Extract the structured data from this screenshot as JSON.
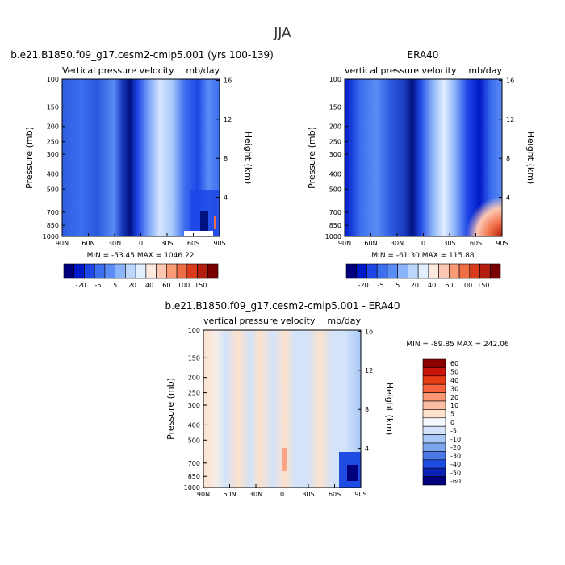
{
  "figure": {
    "title": "JJA"
  },
  "panels": [
    {
      "id": "model",
      "title": "b.e21.B1850.f09_g17.cesm2-cmip5.001 (yrs 100-139)",
      "left_label": "Vertical pressure velocity",
      "right_label": "mb/day",
      "ylabel": "Pressure (mb)",
      "y2label": "Height (km)",
      "stats": "MIN = -53.45   MAX = 1046.22"
    },
    {
      "id": "obs",
      "title": "ERA40",
      "left_label": "vertical pressure velocity",
      "right_label": "mb/day",
      "ylabel": "Pressure (mb)",
      "y2label": "Height (km)",
      "stats": "MIN = -61.30   MAX = 115.88"
    },
    {
      "id": "diff",
      "title": "b.e21.B1850.f09_g17.cesm2-cmip5.001 - ERA40",
      "left_label": "vertical pressure velocity",
      "right_label": "mb/day",
      "ylabel": "Pressure (mb)",
      "y2label": "Height (km)",
      "stats": "MIN = -89.85   MAX = 242.06"
    }
  ],
  "chart_data": [
    {
      "type": "heatmap",
      "panel": "model",
      "x_ticks": [
        "90N",
        "60N",
        "30N",
        "0",
        "30S",
        "60S",
        "90S"
      ],
      "x_values": [
        90,
        60,
        30,
        0,
        -30,
        -60,
        -90
      ],
      "y_ticks": [
        "100",
        "150",
        "200",
        "250",
        "300",
        "400",
        "500",
        "700",
        "850",
        "1000"
      ],
      "y_values": [
        100,
        150,
        200,
        250,
        300,
        400,
        500,
        700,
        850,
        1000
      ],
      "y_scale": "log",
      "y2_ticks": [
        "16",
        "12",
        "8",
        "4"
      ],
      "y2_values": [
        16,
        12,
        8,
        4
      ],
      "min": -53.45,
      "max": 1046.22,
      "colorbar": {
        "labels": [
          "-20",
          "-5",
          "5",
          "20",
          "40",
          "60",
          "100",
          "150"
        ],
        "colors": [
          "#00007f",
          "#0019c8",
          "#1e46e6",
          "#3c6ef0",
          "#5a8cf5",
          "#8cb4fa",
          "#bcd7fc",
          "#e1eefe",
          "#fde9df",
          "#fcc8b4",
          "#fa9b78",
          "#f06e46",
          "#dc3c1e",
          "#b41e0f",
          "#780000"
        ]
      }
    },
    {
      "type": "heatmap",
      "panel": "obs",
      "x_ticks": [
        "90N",
        "60N",
        "30N",
        "0",
        "30S",
        "60S",
        "90S"
      ],
      "x_values": [
        90,
        60,
        30,
        0,
        -30,
        -60,
        -90
      ],
      "y_ticks": [
        "100",
        "150",
        "200",
        "250",
        "300",
        "400",
        "500",
        "700",
        "850",
        "1000"
      ],
      "y_values": [
        100,
        150,
        200,
        250,
        300,
        400,
        500,
        700,
        850,
        1000
      ],
      "y_scale": "log",
      "y2_ticks": [
        "16",
        "12",
        "8",
        "4"
      ],
      "y2_values": [
        16,
        12,
        8,
        4
      ],
      "min": -61.3,
      "max": 115.88,
      "colorbar": {
        "labels": [
          "-20",
          "-5",
          "5",
          "20",
          "40",
          "60",
          "100",
          "150"
        ],
        "colors": [
          "#00007f",
          "#0019c8",
          "#1e46e6",
          "#3c6ef0",
          "#5a8cf5",
          "#8cb4fa",
          "#bcd7fc",
          "#e1eefe",
          "#fde9df",
          "#fcc8b4",
          "#fa9b78",
          "#f06e46",
          "#dc3c1e",
          "#b41e0f",
          "#780000"
        ]
      }
    },
    {
      "type": "heatmap",
      "panel": "diff",
      "x_ticks": [
        "90N",
        "60N",
        "30N",
        "0",
        "30S",
        "60S",
        "90S"
      ],
      "x_values": [
        90,
        60,
        30,
        0,
        -30,
        -60,
        -90
      ],
      "y_ticks": [
        "100",
        "150",
        "200",
        "250",
        "300",
        "400",
        "500",
        "700",
        "850",
        "1000"
      ],
      "y_values": [
        100,
        150,
        200,
        250,
        300,
        400,
        500,
        700,
        850,
        1000
      ],
      "y_scale": "log",
      "y2_ticks": [
        "16",
        "12",
        "8",
        "4"
      ],
      "y2_values": [
        16,
        12,
        8,
        4
      ],
      "min": -89.85,
      "max": 242.06,
      "colorbar": {
        "labels": [
          "60",
          "50",
          "40",
          "30",
          "20",
          "10",
          "5",
          "0",
          "-5",
          "-10",
          "-20",
          "-30",
          "-40",
          "-50",
          "-60"
        ],
        "colors": [
          "#8b0000",
          "#c8140a",
          "#e63c14",
          "#f5643c",
          "#fa9673",
          "#fcbea0",
          "#fde1cc",
          "#f5f8fd",
          "#d2e3fa",
          "#aac8f5",
          "#7da5ee",
          "#4b78e6",
          "#1e4be1",
          "#0a23b4",
          "#00007f"
        ]
      }
    }
  ]
}
